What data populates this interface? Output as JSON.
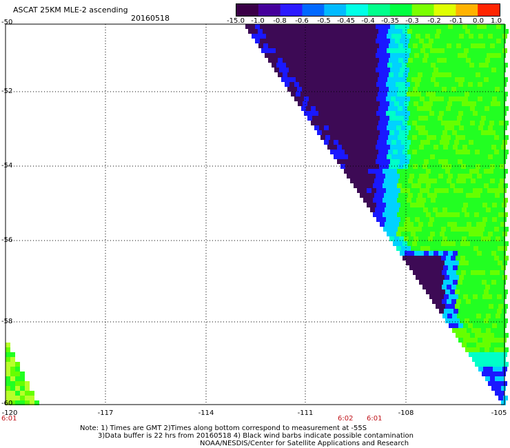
{
  "header": {
    "title": "ASCAT 25KM MLE-2 ascending",
    "date": "20160518"
  },
  "colorbar": {
    "labels": [
      "-15.0",
      "-1.0",
      "-0.8",
      "-0.6",
      "-0.5",
      "-0.45",
      "-0.4",
      "-0.35",
      "-0.3",
      "-0.2",
      "-0.1",
      "0.0",
      "1.0"
    ],
    "colors": [
      "#3a0046",
      "#45009a",
      "#2b1aff",
      "#0068ff",
      "#00baff",
      "#00ffe6",
      "#00ff8c",
      "#00ff40",
      "#7aff00",
      "#dfff00",
      "#ffb200",
      "#ff2400"
    ]
  },
  "map": {
    "lat_labels": [
      "-50",
      "-52",
      "-54",
      "-56",
      "-58",
      "-60"
    ],
    "lon_labels": [
      "-120",
      "-117",
      "-114",
      "-111",
      "-108",
      "-105"
    ],
    "time_labels": [
      "6:01",
      "6:02",
      "6:01"
    ]
  },
  "notes": {
    "line1": "Note: 1) Times are GMT 2)Times along bottom correspond to measurement at -55S",
    "line2": "3)Data buffer is 22 hrs from 20160518 4) Black wind barbs indicate possible contamination",
    "line3": "NOAA/NESDIS/Center for Satellite Applications and Research"
  }
}
